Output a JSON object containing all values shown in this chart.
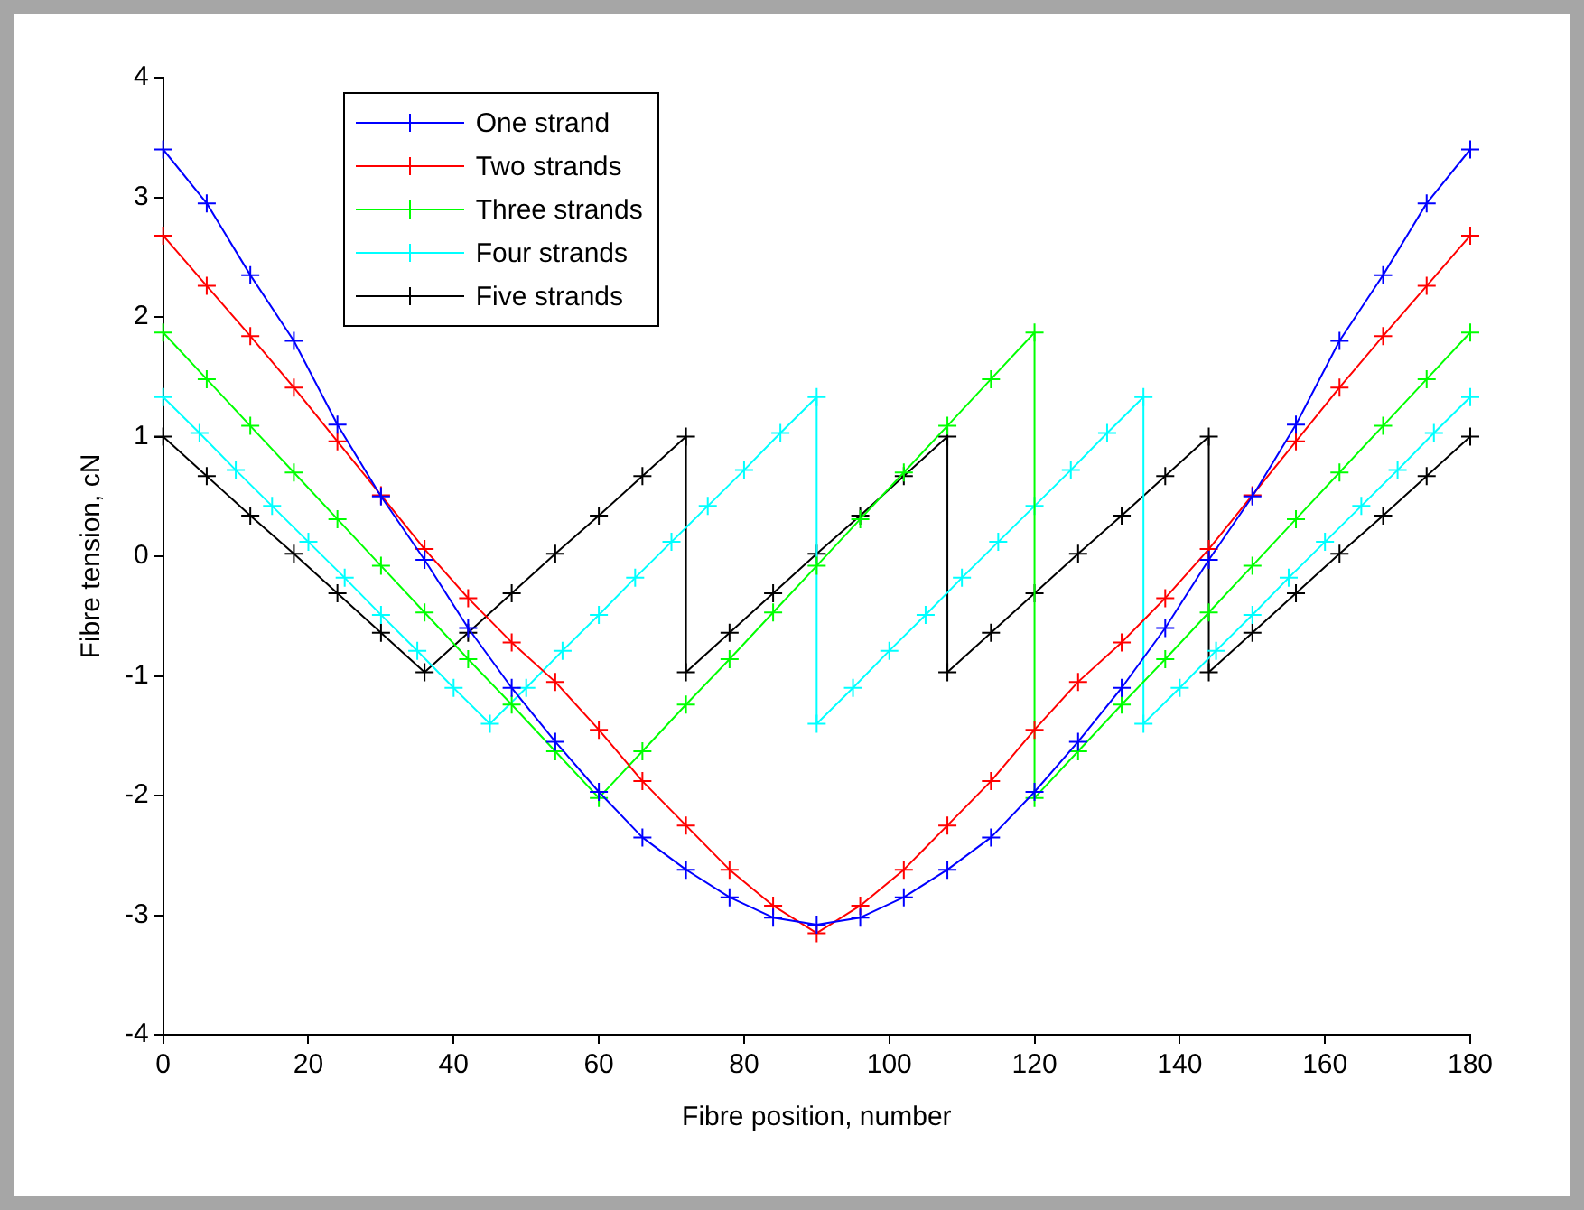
{
  "chart_data": {
    "type": "line",
    "xlabel": "Fibre position, number",
    "ylabel": "Fibre tension, cN",
    "xlim": [
      0,
      180
    ],
    "xticks": [
      0,
      20,
      40,
      60,
      80,
      100,
      120,
      140,
      160,
      180
    ],
    "ylim": [
      -4,
      4
    ],
    "yticks": [
      -4,
      -3,
      -2,
      -1,
      0,
      1,
      2,
      3,
      4
    ],
    "grid": false,
    "legend": "top left",
    "marker": "cross",
    "line_style": "solid",
    "series": [
      {
        "name": "One strand",
        "color": "#0000ff",
        "x": [
          0,
          6,
          12,
          18,
          24,
          30,
          36,
          42,
          48,
          54,
          60,
          66,
          72,
          78,
          84,
          90,
          96,
          102,
          108,
          114,
          120,
          126,
          132,
          138,
          144,
          150,
          156,
          162,
          168,
          174,
          180
        ],
        "values": [
          3.4,
          2.95,
          2.35,
          1.8,
          1.1,
          0.5,
          -0.03,
          -0.6,
          -1.1,
          -1.55,
          -1.97,
          -2.35,
          -2.62,
          -2.85,
          -3.02,
          -3.08,
          -3.02,
          -2.85,
          -2.62,
          -2.35,
          -1.97,
          -1.55,
          -1.1,
          -0.6,
          -0.03,
          0.5,
          1.1,
          1.8,
          2.35,
          2.95,
          3.4
        ]
      },
      {
        "name": "Two strands",
        "color": "#ff0000",
        "x": [
          0,
          6,
          12,
          18,
          24,
          30,
          36,
          42,
          48,
          54,
          60,
          66,
          72,
          78,
          84,
          90,
          96,
          102,
          108,
          114,
          120,
          126,
          132,
          138,
          144,
          150,
          156,
          162,
          168,
          174,
          180
        ],
        "values": [
          2.68,
          2.26,
          1.84,
          1.41,
          0.96,
          0.51,
          0.06,
          -0.35,
          -0.72,
          -1.05,
          -1.45,
          -1.88,
          -2.25,
          -2.62,
          -2.92,
          -3.15,
          -2.92,
          -2.62,
          -2.25,
          -1.88,
          -1.45,
          -1.05,
          -0.72,
          -0.35,
          0.06,
          0.51,
          0.96,
          1.41,
          1.84,
          2.26,
          2.68
        ]
      },
      {
        "name": "Three strands",
        "color": "#00ff00",
        "x": [
          0,
          6,
          12,
          18,
          24,
          30,
          36,
          42,
          48,
          54,
          60,
          66,
          72,
          78,
          84,
          90,
          96,
          102,
          108,
          114,
          120,
          120,
          126,
          132,
          138,
          144,
          150,
          156,
          162,
          168,
          174,
          180
        ],
        "values": [
          1.87,
          1.48,
          1.09,
          0.7,
          0.31,
          -0.08,
          -0.47,
          -0.86,
          -1.24,
          -1.63,
          -2.02,
          -1.63,
          -1.24,
          -0.86,
          -0.47,
          -0.08,
          0.31,
          0.7,
          1.09,
          1.48,
          1.87,
          -2.02,
          -1.63,
          -1.24,
          -0.86,
          -0.47,
          -0.08,
          0.31,
          0.7,
          1.09,
          1.48,
          1.87
        ]
      },
      {
        "name": "Four strands",
        "color": "#00ffff",
        "x": [
          0,
          5,
          10,
          15,
          20,
          25,
          30,
          35,
          40,
          45,
          50,
          55,
          60,
          65,
          70,
          75,
          80,
          85,
          90,
          90,
          95,
          100,
          105,
          110,
          115,
          120,
          125,
          130,
          135,
          135,
          140,
          145,
          150,
          155,
          160,
          165,
          170,
          175,
          180
        ],
        "values": [
          1.33,
          1.03,
          0.72,
          0.42,
          0.12,
          -0.18,
          -0.49,
          -0.79,
          -1.1,
          -1.4,
          -1.1,
          -0.79,
          -0.49,
          -0.18,
          0.12,
          0.42,
          0.72,
          1.03,
          1.33,
          -1.4,
          -1.1,
          -0.79,
          -0.49,
          -0.18,
          0.12,
          0.42,
          0.72,
          1.03,
          1.33,
          -1.4,
          -1.1,
          -0.79,
          -0.49,
          -0.18,
          0.12,
          0.42,
          0.72,
          1.03,
          1.33
        ]
      },
      {
        "name": "Five strands",
        "color": "#000000",
        "x": [
          0,
          6,
          12,
          18,
          24,
          30,
          36,
          42,
          48,
          54,
          60,
          66,
          72,
          72,
          78,
          84,
          90,
          96,
          102,
          108,
          108,
          114,
          120,
          126,
          132,
          138,
          144,
          144,
          150,
          156,
          162,
          168,
          174,
          180
        ],
        "values": [
          1,
          0.67,
          0.34,
          0.02,
          -0.31,
          -0.64,
          -0.97,
          -0.64,
          -0.31,
          0.02,
          0.34,
          0.67,
          1,
          -0.97,
          -0.64,
          -0.31,
          0.02,
          0.34,
          0.67,
          1,
          -0.97,
          -0.64,
          -0.31,
          0.02,
          0.34,
          0.67,
          1,
          -0.97,
          -0.64,
          -0.31,
          0.02,
          0.34,
          0.67,
          1
        ]
      }
    ]
  }
}
